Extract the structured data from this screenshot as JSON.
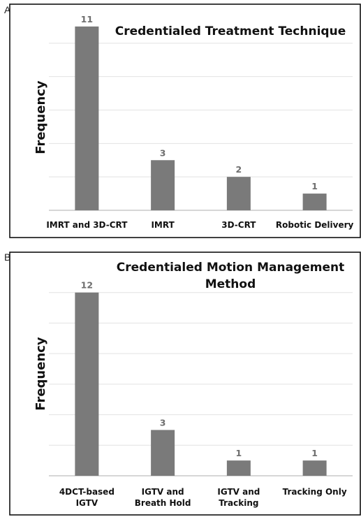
{
  "panels": [
    {
      "letter": "A"
    },
    {
      "letter": "B"
    }
  ],
  "chart_data": [
    {
      "type": "bar",
      "title": [
        "Credentialed Treatment Technique"
      ],
      "ylabel": "Frequency",
      "xlabel": "",
      "categories": [
        [
          "IMRT and 3D-CRT"
        ],
        [
          "IMRT"
        ],
        [
          "3D-CRT"
        ],
        [
          "Robotic Delivery"
        ]
      ],
      "values": [
        11,
        3,
        2,
        1
      ],
      "ylim": [
        0,
        12
      ],
      "grid": true,
      "bar_color": "#7a7a7a",
      "label_color": "#6e6e6e"
    },
    {
      "type": "bar",
      "title": [
        "Credentialed Motion Management",
        "Method"
      ],
      "ylabel": "Frequency",
      "xlabel": "",
      "categories": [
        [
          "4DCT-based",
          "IGTV"
        ],
        [
          "IGTV and",
          "Breath Hold"
        ],
        [
          "IGTV and",
          "Tracking"
        ],
        [
          "Tracking Only"
        ]
      ],
      "values": [
        12,
        3,
        1,
        1
      ],
      "ylim": [
        0,
        14
      ],
      "grid": true,
      "bar_color": "#7a7a7a",
      "label_color": "#6e6e6e"
    }
  ]
}
